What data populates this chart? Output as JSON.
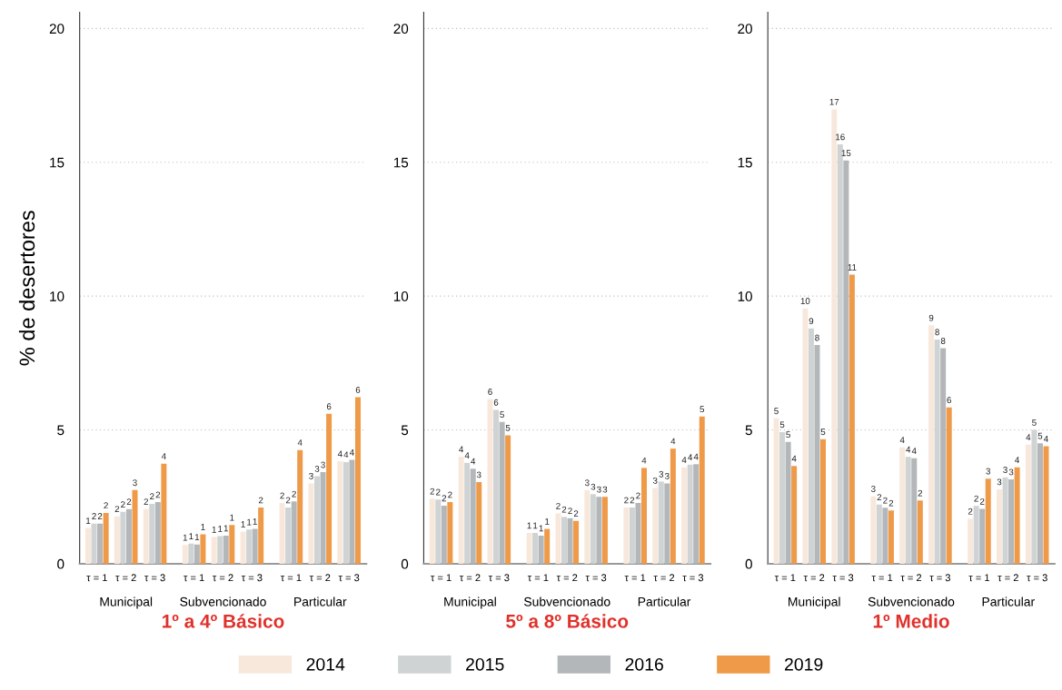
{
  "chart_data": [
    {
      "type": "bar",
      "title": "1º a 4º Básico",
      "ylabel": "% de desertores",
      "categories": [
        "τ = 1",
        "τ = 2",
        "τ = 3",
        "τ = 1",
        "τ = 2",
        "τ = 3",
        "τ = 1",
        "τ = 2",
        "τ = 3"
      ],
      "annotations": [
        "Municipal",
        "Subvencionado",
        "Particular"
      ],
      "ylim": [
        0,
        20.6
      ],
      "yticks": [
        0,
        5,
        10,
        15,
        20
      ],
      "grid": "y",
      "legend": "bottom",
      "series": [
        {
          "name": "2014",
          "color": "#f8e8dc",
          "values": [
            1.33,
            1.77,
            2.04,
            0.7,
            1.0,
            1.2,
            2.27,
            3.0,
            3.83
          ],
          "value_labels": [
            "1",
            "2",
            "2",
            "1",
            "1",
            "1",
            "2",
            "3",
            "4"
          ]
        },
        {
          "name": "2015",
          "color": "#cfd3d4",
          "values": [
            1.5,
            1.94,
            2.24,
            0.75,
            1.03,
            1.28,
            2.1,
            3.27,
            3.8
          ],
          "value_labels": [
            "2",
            "2",
            "2",
            "1",
            "1",
            "1",
            "2",
            "3",
            "4"
          ]
        },
        {
          "name": "2016",
          "color": "#b3b7ba",
          "values": [
            1.5,
            2.04,
            2.3,
            0.72,
            1.05,
            1.3,
            2.33,
            3.42,
            3.88
          ],
          "value_labels": [
            "2",
            "2",
            "2",
            "1",
            "1",
            "1",
            "2",
            "3",
            "4"
          ]
        },
        {
          "name": "2019",
          "color": "#ef9a48",
          "values": [
            1.9,
            2.75,
            3.74,
            1.1,
            1.45,
            2.1,
            4.25,
            5.6,
            6.22
          ],
          "value_labels": [
            "2",
            "3",
            "4",
            "1",
            "1",
            "2",
            "4",
            "6",
            "6"
          ]
        }
      ]
    },
    {
      "type": "bar",
      "title": "5º a 8º Básico",
      "categories": [
        "τ = 1",
        "τ = 2",
        "τ = 3",
        "τ = 1",
        "τ = 2",
        "τ = 3",
        "τ = 1",
        "τ = 2",
        "τ = 3"
      ],
      "annotations": [
        "Municipal",
        "Subvencionado",
        "Particular"
      ],
      "ylim": [
        0,
        20.6
      ],
      "yticks": [
        0,
        5,
        10,
        15,
        20
      ],
      "grid": "y",
      "series": [
        {
          "name": "2014",
          "color": "#f8e8dc",
          "values": [
            2.43,
            4.0,
            6.15,
            1.15,
            1.88,
            2.75,
            2.1,
            2.83,
            3.6
          ],
          "value_labels": [
            "2",
            "4",
            "6",
            "1",
            "2",
            "3",
            "2",
            "3",
            "4"
          ]
        },
        {
          "name": "2015",
          "color": "#cfd3d4",
          "values": [
            2.4,
            3.77,
            5.75,
            1.15,
            1.75,
            2.6,
            2.1,
            3.07,
            3.7
          ],
          "value_labels": [
            "2",
            "4",
            "6",
            "1",
            "2",
            "3",
            "2",
            "3",
            "4"
          ]
        },
        {
          "name": "2016",
          "color": "#b3b7ba",
          "values": [
            2.17,
            3.55,
            5.3,
            1.05,
            1.7,
            2.5,
            2.27,
            3.0,
            3.72
          ],
          "value_labels": [
            "2",
            "4",
            "5",
            "1",
            "2",
            "3",
            "2",
            "3",
            "4"
          ]
        },
        {
          "name": "2019",
          "color": "#ef9a48",
          "values": [
            2.3,
            3.05,
            4.8,
            1.3,
            1.6,
            2.5,
            3.58,
            4.3,
            5.5
          ],
          "value_labels": [
            "2",
            "3",
            "5",
            "1",
            "2",
            "3",
            "4",
            "4",
            "5"
          ]
        }
      ]
    },
    {
      "type": "bar",
      "title": "1º Medio",
      "categories": [
        "τ = 1",
        "τ = 2",
        "τ = 3",
        "τ = 1",
        "τ = 2",
        "τ = 3",
        "τ = 1",
        "τ = 2",
        "τ = 3"
      ],
      "annotations": [
        "Municipal",
        "Subvencionado",
        "Particular"
      ],
      "ylim": [
        0,
        20.6
      ],
      "yticks": [
        0,
        5,
        10,
        15,
        20
      ],
      "grid": "y",
      "series": [
        {
          "name": "2014",
          "color": "#f8e8dc",
          "values": [
            5.43,
            9.54,
            16.98,
            2.52,
            4.35,
            8.91,
            1.68,
            2.78,
            4.45
          ],
          "value_labels": [
            "5",
            "10",
            "17",
            "3",
            "4",
            "9",
            "2",
            "3",
            "4"
          ]
        },
        {
          "name": "2015",
          "color": "#cfd3d4",
          "values": [
            4.92,
            8.79,
            15.67,
            2.21,
            3.99,
            8.38,
            2.16,
            3.23,
            5.0
          ],
          "value_labels": [
            "5",
            "9",
            "16",
            "2",
            "4",
            "8",
            "2",
            "3",
            "5"
          ]
        },
        {
          "name": "2016",
          "color": "#b3b7ba",
          "values": [
            4.55,
            8.17,
            15.07,
            2.09,
            3.94,
            8.05,
            2.05,
            3.15,
            4.5
          ],
          "value_labels": [
            "5",
            "8",
            "15",
            "2",
            "4",
            "8",
            "2",
            "3",
            "5"
          ]
        },
        {
          "name": "2019",
          "color": "#ef9a48",
          "values": [
            3.65,
            4.65,
            10.8,
            1.99,
            2.36,
            5.84,
            3.18,
            3.6,
            4.39
          ],
          "value_labels": [
            "4",
            "5",
            "11",
            "2",
            "2",
            "6",
            "3",
            "4",
            "4"
          ]
        }
      ]
    }
  ]
}
